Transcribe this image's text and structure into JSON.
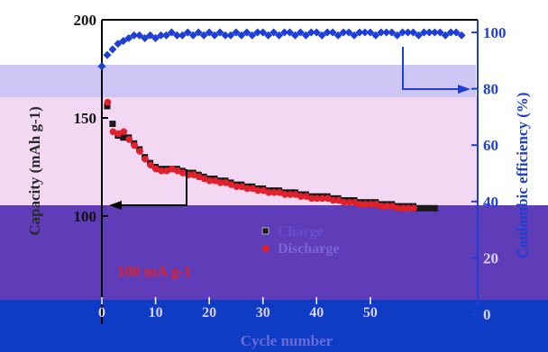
{
  "chart_data": {
    "type": "scatter",
    "xlabel": "Cycle number",
    "ylabel_left": "Capacity (mAh g-1)",
    "ylabel_right": "Coulombic efficiency (%)",
    "xlim": [
      0,
      70
    ],
    "ylim_left": [
      50,
      200
    ],
    "ylim_right": [
      0,
      100
    ],
    "x_ticks": [
      "0",
      "10",
      "20",
      "30",
      "40",
      "50"
    ],
    "y_left_ticks": [
      "100",
      "150",
      "200"
    ],
    "y_right_ticks": [
      "0",
      "20",
      "40",
      "60",
      "80",
      "100"
    ],
    "annotation": "100 mA g-1",
    "series": [
      {
        "name": "Charge",
        "axis": "left",
        "marker": "square",
        "color": "#1a1a1a",
        "x": [
          1,
          2,
          3,
          4,
          5,
          6,
          7,
          8,
          9,
          10,
          11,
          12,
          13,
          14,
          15,
          16,
          17,
          18,
          19,
          20,
          21,
          22,
          23,
          24,
          25,
          26,
          27,
          28,
          29,
          30,
          31,
          32,
          33,
          34,
          35,
          36,
          37,
          38,
          39,
          40,
          41,
          42,
          43,
          44,
          45,
          46,
          47,
          48,
          49,
          50,
          51,
          52,
          53,
          54,
          55,
          56,
          57,
          58,
          59,
          60,
          61,
          62,
          63,
          64,
          65,
          66,
          67
        ],
        "y": [
          156,
          147,
          141,
          140,
          140,
          137,
          134,
          130,
          127,
          125,
          124,
          124,
          124,
          124,
          123,
          122,
          122,
          121,
          120,
          119,
          119,
          118,
          118,
          117,
          116,
          116,
          115,
          115,
          114,
          114,
          113,
          113,
          113,
          112,
          112,
          112,
          111,
          111,
          110,
          110,
          110,
          110,
          109,
          109,
          108,
          108,
          108,
          107,
          107,
          107,
          107,
          106,
          106,
          106,
          105,
          105,
          105,
          105,
          104,
          104,
          104,
          104,
          103,
          103,
          103,
          102,
          102
        ]
      },
      {
        "name": "Discharge",
        "axis": "left",
        "marker": "circle",
        "color": "#e0202a",
        "x": [
          1,
          2,
          3,
          4,
          5,
          6,
          7,
          8,
          9,
          10,
          11,
          12,
          13,
          14,
          15,
          16,
          17,
          18,
          19,
          20,
          21,
          22,
          23,
          24,
          25,
          26,
          27,
          28,
          29,
          30,
          31,
          32,
          33,
          34,
          35,
          36,
          37,
          38,
          39,
          40,
          41,
          42,
          43,
          44,
          45,
          46,
          47,
          48,
          49,
          50,
          51,
          52,
          53,
          54,
          55,
          56,
          57,
          58,
          59,
          60,
          61,
          62,
          63,
          64,
          65,
          66,
          67
        ],
        "y": [
          158,
          143,
          142,
          143,
          139,
          136,
          133,
          129,
          126,
          124,
          123,
          123,
          124,
          123,
          122,
          121,
          121,
          120,
          119,
          118,
          118,
          117,
          117,
          116,
          115,
          115,
          114,
          114,
          113,
          113,
          112,
          112,
          112,
          111,
          111,
          111,
          110,
          110,
          109,
          109,
          109,
          109,
          108,
          108,
          107,
          107,
          107,
          106,
          106,
          106,
          106,
          105,
          105,
          105,
          104,
          104,
          104,
          104,
          103,
          103,
          103,
          103,
          102,
          102,
          102,
          101,
          101
        ]
      },
      {
        "name": "Coulombic efficiency",
        "axis": "right",
        "marker": "diamond",
        "color": "#1e3fd6",
        "x": [
          0,
          1,
          2,
          3,
          4,
          5,
          6,
          7,
          8,
          9,
          10,
          11,
          12,
          13,
          14,
          15,
          16,
          17,
          18,
          19,
          20,
          21,
          22,
          23,
          24,
          25,
          26,
          27,
          28,
          29,
          30,
          31,
          32,
          33,
          34,
          35,
          36,
          37,
          38,
          39,
          40,
          41,
          42,
          43,
          44,
          45,
          46,
          47,
          48,
          49,
          50,
          51,
          52,
          53,
          54,
          55,
          56,
          57,
          58,
          59,
          60,
          61,
          62,
          63,
          64,
          65,
          66,
          67
        ],
        "y": [
          88,
          92,
          94,
          96,
          97,
          98,
          99,
          99,
          98,
          99,
          98,
          99,
          99,
          100,
          99,
          99,
          100,
          99,
          100,
          99,
          100,
          99,
          100,
          99,
          99,
          100,
          99,
          100,
          99,
          100,
          100,
          99,
          100,
          99,
          100,
          100,
          99,
          100,
          99,
          100,
          100,
          99,
          100,
          100,
          99,
          100,
          100,
          99,
          100,
          100,
          100,
          99,
          100,
          100,
          100,
          99,
          100,
          100,
          100,
          99,
          100,
          100,
          100,
          100,
          99,
          100,
          100,
          99
        ]
      }
    ]
  }
}
